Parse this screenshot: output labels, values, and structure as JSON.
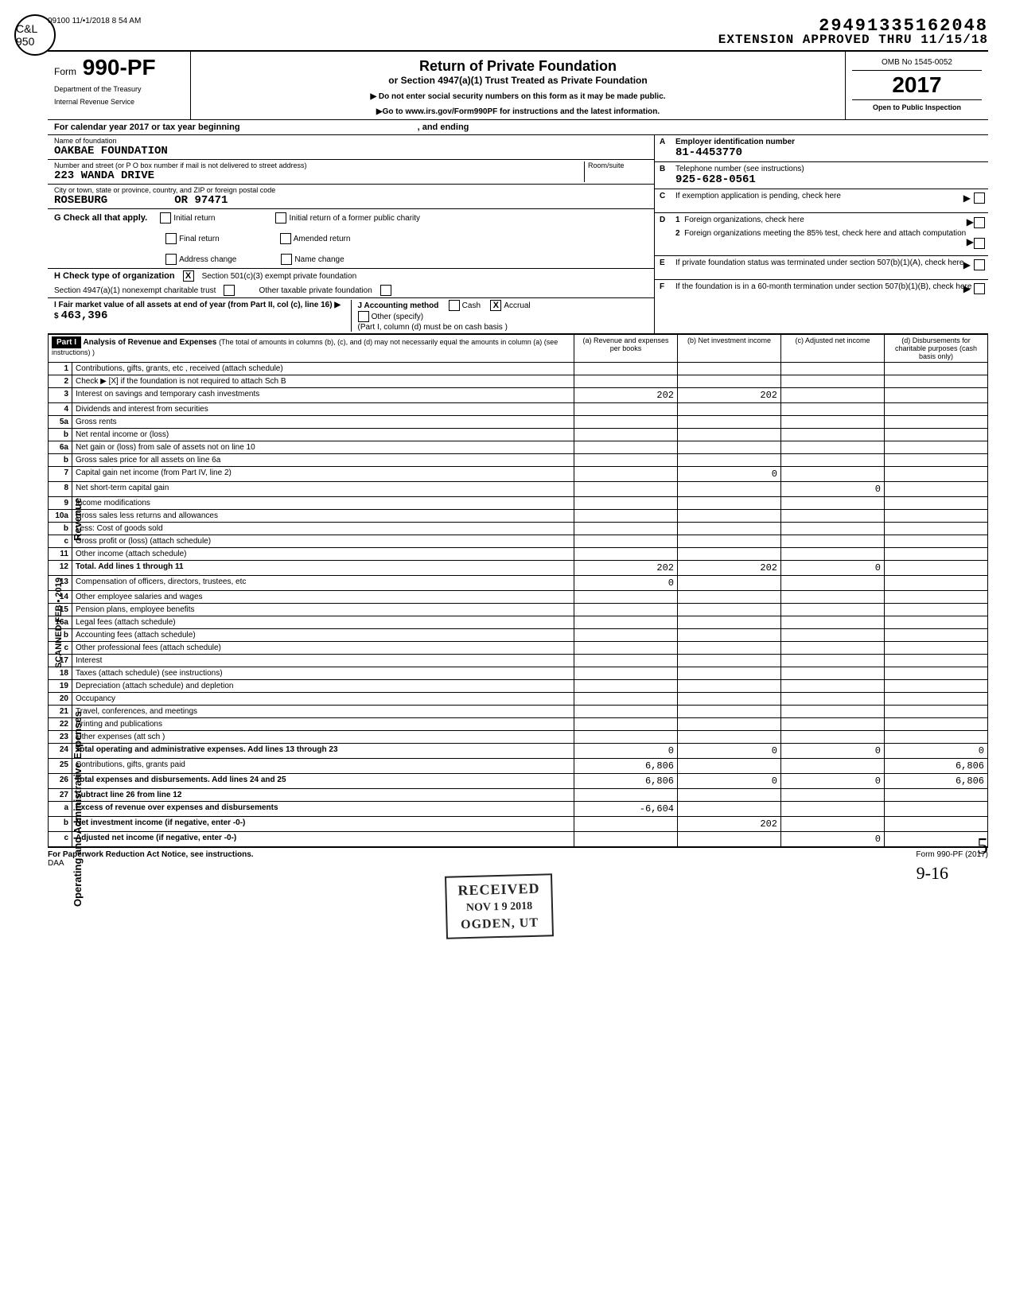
{
  "header": {
    "timestamp": "09100 11/•1/2018 8 54 AM",
    "circle_stamp_text": "C&L\n950",
    "dln": "29491335162048",
    "extension_line": "EXTENSION APPROVED THRU 11/15/18",
    "form_prefix": "Form",
    "form_number": "990-PF",
    "dept_line1": "Department of the Treasury",
    "dept_line2": "Internal Revenue Service",
    "title_main": "Return of Private Foundation",
    "title_sub": "or Section 4947(a)(1) Trust Treated as Private Foundation",
    "title_note1": "▶ Do not enter social security numbers on this form as it may be made public.",
    "title_note2": "▶Go to www.irs.gov/Form990PF for instructions and the latest information.",
    "omb": "OMB No 1545-0052",
    "year": "2017",
    "open_inspection": "Open to Public Inspection",
    "cal_year": "For calendar year 2017 or tax year beginning",
    "cal_year_end": ", and ending"
  },
  "entity": {
    "name_label": "Name of foundation",
    "name": "OAKBAE FOUNDATION",
    "street_label": "Number and street (or P O box number if mail is not delivered to street address)",
    "room_label": "Room/suite",
    "street": "223 WANDA DRIVE",
    "city_label": "City or town, state or province, country, and ZIP or foreign postal code",
    "city": "ROSEBURG",
    "state_zip": "OR 97471",
    "A_label": "A",
    "A_text": "Employer identification number",
    "A_val": "81-4453770",
    "B_label": "B",
    "B_text": "Telephone number (see instructions)",
    "B_val": "925-628-0561",
    "C_label": "C",
    "C_text": "If exemption application is pending, check here",
    "D1_text": "Foreign organizations, check here",
    "D2_text": "Foreign organizations meeting the 85% test, check here and attach computation",
    "E_text": "If private foundation status was terminated under section 507(b)(1)(A), check here",
    "F_text": "If the foundation is in a 60-month termination under section 507(b)(1)(B), check here"
  },
  "G": {
    "label": "G  Check all that apply.",
    "opts": [
      "Initial return",
      "Final return",
      "Address change",
      "Initial return of a former public charity",
      "Amended return",
      "Name change"
    ]
  },
  "H": {
    "label": "H  Check type of organization",
    "opt1": "Section 501(c)(3) exempt private foundation",
    "opt1_checked": "X",
    "opt2": "Section 4947(a)(1) nonexempt charitable trust",
    "opt3": "Other taxable private foundation"
  },
  "I": {
    "label": "I  Fair market value of all assets at end of year (from Part II, col (c), line 16) ▶  $",
    "value": "463,396"
  },
  "J": {
    "label": "J  Accounting method",
    "cash": "Cash",
    "accrual": "Accrual",
    "accrual_checked": "X",
    "other": "Other (specify)",
    "note": "(Part I, column (d) must be on cash basis )"
  },
  "part1": {
    "label": "Part I",
    "title": "Analysis of Revenue and Expenses",
    "title_note": "(The total of amounts in columns (b), (c), and (d) may not necessarily equal the amounts in column (a) (see instructions) )",
    "col_a": "(a) Revenue and expenses per books",
    "col_b": "(b) Net investment income",
    "col_c": "(c) Adjusted net income",
    "col_d": "(d) Disbursements for charitable purposes (cash basis only)",
    "rev_label": "Revenue",
    "exp_label": "Operating and Administrative Expenses",
    "side_label": "SCANNED FEB • 2019",
    "rows": [
      {
        "n": "1",
        "d": "Contributions, gifts, grants, etc , received (attach schedule)"
      },
      {
        "n": "2",
        "d": "Check ▶  [X]  if the foundation is not required to attach Sch B"
      },
      {
        "n": "3",
        "d": "Interest on savings and temporary cash investments",
        "a": "202",
        "b": "202"
      },
      {
        "n": "4",
        "d": "Dividends and interest from securities"
      },
      {
        "n": "5a",
        "d": "Gross rents"
      },
      {
        "n": "b",
        "d": "Net rental income or (loss)"
      },
      {
        "n": "6a",
        "d": "Net gain or (loss) from sale of assets not on line 10"
      },
      {
        "n": "b",
        "d": "Gross sales price for all assets on line 6a"
      },
      {
        "n": "7",
        "d": "Capital gain net income (from Part IV, line 2)",
        "b": "0"
      },
      {
        "n": "8",
        "d": "Net short-term capital gain",
        "c": "0"
      },
      {
        "n": "9",
        "d": "Income modifications"
      },
      {
        "n": "10a",
        "d": "Gross sales less returns and allowances"
      },
      {
        "n": "b",
        "d": "Less: Cost of goods sold"
      },
      {
        "n": "c",
        "d": "Gross profit or (loss) (attach schedule)"
      },
      {
        "n": "11",
        "d": "Other income (attach schedule)"
      },
      {
        "n": "12",
        "d": "Total. Add lines 1 through 11",
        "a": "202",
        "b": "202",
        "c": "0",
        "bold": true
      },
      {
        "n": "13",
        "d": "Compensation of officers, directors, trustees, etc",
        "a": "0"
      },
      {
        "n": "14",
        "d": "Other employee salaries and wages"
      },
      {
        "n": "15",
        "d": "Pension plans, employee benefits"
      },
      {
        "n": "16a",
        "d": "Legal fees (attach schedule)"
      },
      {
        "n": "b",
        "d": "Accounting fees (attach schedule)"
      },
      {
        "n": "c",
        "d": "Other professional fees (attach schedule)"
      },
      {
        "n": "17",
        "d": "Interest"
      },
      {
        "n": "18",
        "d": "Taxes (attach schedule) (see instructions)"
      },
      {
        "n": "19",
        "d": "Depreciation (attach schedule) and depletion"
      },
      {
        "n": "20",
        "d": "Occupancy"
      },
      {
        "n": "21",
        "d": "Travel, conferences, and meetings"
      },
      {
        "n": "22",
        "d": "Printing and publications"
      },
      {
        "n": "23",
        "d": "Other expenses (att sch )"
      },
      {
        "n": "24",
        "d": "Total operating and administrative expenses. Add lines 13 through 23",
        "a": "0",
        "b": "0",
        "c": "0",
        "dcol": "0",
        "bold": true
      },
      {
        "n": "25",
        "d": "Contributions, gifts, grants paid",
        "a": "6,806",
        "dcol": "6,806"
      },
      {
        "n": "26",
        "d": "Total expenses and disbursements. Add lines 24 and 25",
        "a": "6,806",
        "b": "0",
        "c": "0",
        "dcol": "6,806",
        "bold": true
      },
      {
        "n": "27",
        "d": "Subtract line 26 from line 12",
        "bold": true
      },
      {
        "n": "a",
        "d": "Excess of revenue over expenses and disbursements",
        "a": "-6,604",
        "bold": true
      },
      {
        "n": "b",
        "d": "Net investment income (if negative, enter -0-)",
        "b": "202",
        "bold": true
      },
      {
        "n": "c",
        "d": "Adjusted net income (if negative, enter -0-)",
        "c": "0",
        "bold": true
      }
    ]
  },
  "stamp": {
    "r1": "RECEIVED",
    "r2": "NOV 1 9 2018",
    "r3": "OGDEN, UT"
  },
  "footer": {
    "paperwork": "For Paperwork Reduction Act Notice, see instructions.",
    "daa": "DAA",
    "form_ref": "Form 990-PF (2017)",
    "handwritten": "9-16"
  },
  "colors": {
    "text": "#000000",
    "bg": "#ffffff",
    "border": "#000000"
  }
}
